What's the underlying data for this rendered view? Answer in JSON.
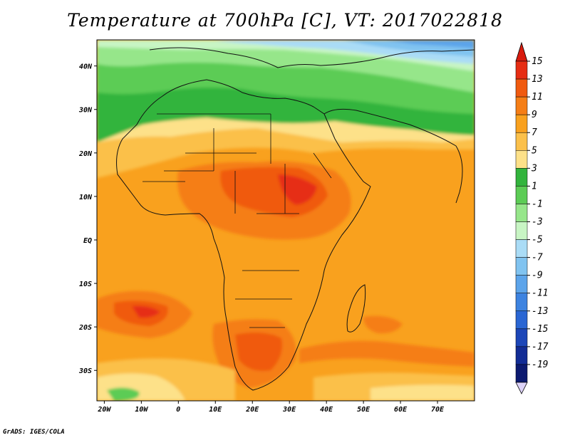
{
  "title": "Temperature at 700hPa [C], VT: 2017022818",
  "credit": "GrADS: IGES/COLA",
  "map": {
    "variable": "Temperature at 700hPa",
    "units": "C",
    "valid_time": "2017022818",
    "region": "Africa",
    "lon_range": [
      -22,
      80
    ],
    "lat_range": [
      -37,
      46
    ],
    "lon_ticks": [
      {
        "value": -20,
        "label": "20W"
      },
      {
        "value": -10,
        "label": "10W"
      },
      {
        "value": 0,
        "label": "0"
      },
      {
        "value": 10,
        "label": "10E"
      },
      {
        "value": 20,
        "label": "20E"
      },
      {
        "value": 30,
        "label": "30E"
      },
      {
        "value": 40,
        "label": "40E"
      },
      {
        "value": 50,
        "label": "50E"
      },
      {
        "value": 60,
        "label": "60E"
      },
      {
        "value": 70,
        "label": "70E"
      }
    ],
    "lat_ticks": [
      {
        "value": 40,
        "label": "40N"
      },
      {
        "value": 30,
        "label": "30N"
      },
      {
        "value": 20,
        "label": "20N"
      },
      {
        "value": 10,
        "label": "10N"
      },
      {
        "value": 0,
        "label": "EQ"
      },
      {
        "value": -10,
        "label": "10S"
      },
      {
        "value": -20,
        "label": "20S"
      },
      {
        "value": -30,
        "label": "30S"
      }
    ]
  },
  "colorbar": {
    "levels": [
      15,
      13,
      11,
      9,
      7,
      5,
      3,
      1,
      -1,
      -3,
      -5,
      -7,
      -9,
      -11,
      -13,
      -15,
      -17,
      -19
    ],
    "labels": [
      "15",
      "13",
      "11",
      "9",
      "7",
      "5",
      "3",
      "1",
      "-1",
      "-3",
      "-5",
      "-7",
      "-9",
      "-11",
      "-13",
      "-15",
      "-17",
      "-19"
    ],
    "colors": [
      "#e62d13",
      "#f05a0f",
      "#f57e16",
      "#f9a11e",
      "#fbc04a",
      "#fde189",
      "#32b43c",
      "#5ccc55",
      "#96e68a",
      "#c8f5c4",
      "#aadcf6",
      "#80c3f0",
      "#5ca4ea",
      "#3d83e0",
      "#2a66d3",
      "#1c46b8",
      "#122c95",
      "#0c1a70"
    ],
    "top_arrow_color": "#d81b0e",
    "bottom_arrow_color": "#dcd2f8"
  },
  "palette": {
    "ocean_base": "#f9a11e",
    "warm_11_13": "#f57e16",
    "hot_13_15": "#f05a0f",
    "very_hot": "#e62d13",
    "mild_7_9": "#fbc04a",
    "mild_5_7": "#fde189",
    "green_1_3": "#32b43c",
    "green_m1_1": "#5ccc55",
    "green_m3_m1": "#96e68a",
    "pale_m5_m3": "#c8f5c4",
    "blue_m7_m5": "#aadcf6",
    "blue_m9_m7": "#80c3f0",
    "blue_m11_m9": "#5ca4ea"
  }
}
